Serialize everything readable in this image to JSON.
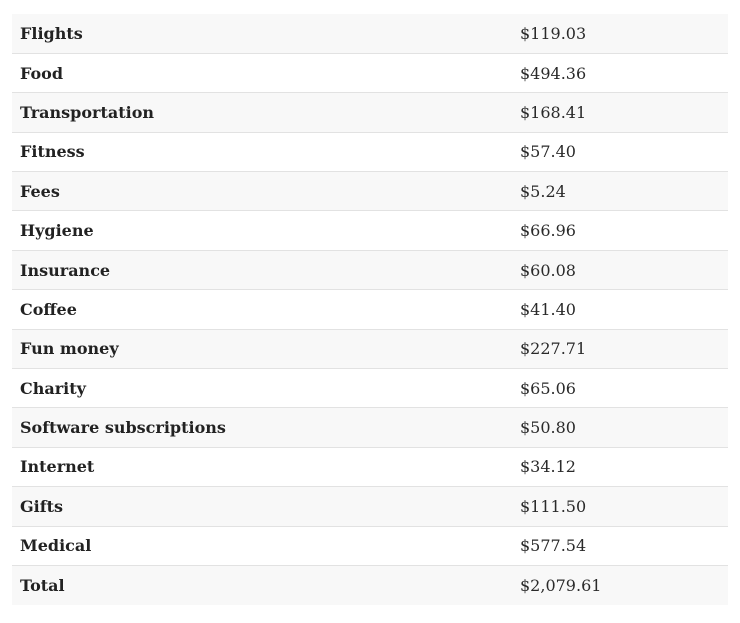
{
  "rows": [
    {
      "category": "Flights",
      "amount": "$119.03"
    },
    {
      "category": "Food",
      "amount": "$494.36"
    },
    {
      "category": "Transportation",
      "amount": "$168.41"
    },
    {
      "category": "Fitness",
      "amount": "$57.40"
    },
    {
      "category": "Fees",
      "amount": "$5.24"
    },
    {
      "category": "Hygiene",
      "amount": "$66.96"
    },
    {
      "category": "Insurance",
      "amount": "$60.08"
    },
    {
      "category": "Coffee",
      "amount": "$41.40"
    },
    {
      "category": "Fun money",
      "amount": "$227.71"
    },
    {
      "category": "Charity",
      "amount": "$65.06"
    },
    {
      "category": "Software subscriptions",
      "amount": "$50.80"
    },
    {
      "category": "Internet",
      "amount": "$34.12"
    },
    {
      "category": "Gifts",
      "amount": "$111.50"
    },
    {
      "category": "Medical",
      "amount": "$577.54"
    }
  ],
  "total": {
    "category": "Total",
    "amount": "$2,079.61"
  }
}
